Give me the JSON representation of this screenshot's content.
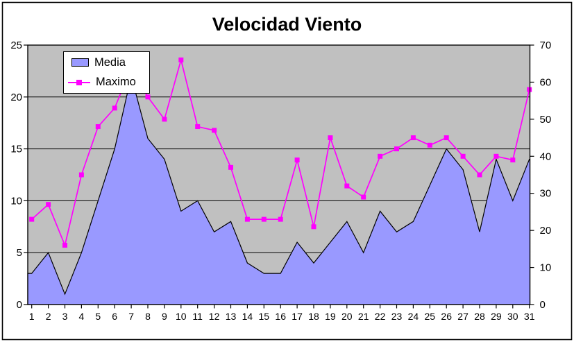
{
  "figure": {
    "background": "#FFFFFF",
    "frame_border_color": "#000000"
  },
  "chart_data": {
    "type": "combo-area-line",
    "title": "Velocidad Viento",
    "plot_background": "#C0C0C0",
    "gridlines": {
      "left_values": [
        5,
        10,
        15,
        20
      ],
      "color": "#000000"
    },
    "x": [
      1,
      2,
      3,
      4,
      5,
      6,
      7,
      8,
      9,
      10,
      11,
      12,
      13,
      14,
      15,
      16,
      17,
      18,
      19,
      20,
      21,
      22,
      23,
      24,
      25,
      26,
      27,
      28,
      29,
      30,
      31
    ],
    "axes": {
      "left": {
        "min": 0,
        "max": 25,
        "ticks": [
          0,
          5,
          10,
          15,
          20,
          25
        ]
      },
      "right": {
        "min": 0,
        "max": 70,
        "ticks": [
          0,
          10,
          20,
          30,
          40,
          50,
          60,
          70
        ]
      },
      "x": {
        "ticks": [
          1,
          2,
          3,
          4,
          5,
          6,
          7,
          8,
          9,
          10,
          11,
          12,
          13,
          14,
          15,
          16,
          17,
          18,
          19,
          20,
          21,
          22,
          23,
          24,
          25,
          26,
          27,
          28,
          29,
          30,
          31
        ]
      }
    },
    "series": [
      {
        "name": "Media",
        "type": "area",
        "y_axis": "left",
        "color": "#9999FF",
        "outline_color": "#000000",
        "values": [
          3,
          5,
          1,
          5,
          10,
          15,
          22,
          16,
          14,
          9,
          10,
          7,
          8,
          4,
          3,
          3,
          6,
          4,
          6,
          8,
          5,
          9,
          7,
          8,
          11.5,
          15,
          13,
          7,
          14,
          10,
          14
        ]
      },
      {
        "name": "Maximo",
        "type": "line",
        "y_axis": "right",
        "color": "#FF00FF",
        "marker": "square",
        "values": [
          23,
          27,
          16,
          35,
          48,
          53,
          64,
          56,
          50,
          66,
          48,
          47,
          37,
          23,
          23,
          23,
          39,
          21,
          45,
          32,
          29,
          40,
          42,
          45,
          43,
          45,
          40,
          35,
          40,
          39,
          58
        ]
      }
    ],
    "legend": {
      "position": "top-left",
      "entries": [
        "Media",
        "Maximo"
      ]
    }
  }
}
